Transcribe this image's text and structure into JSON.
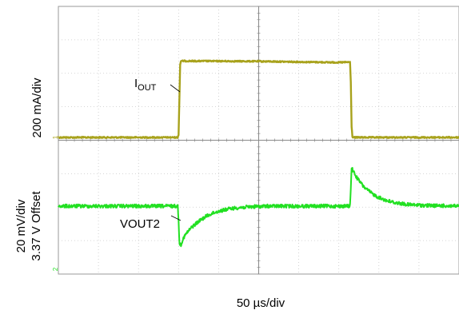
{
  "chart_data": {
    "type": "line",
    "title": "",
    "xlabel": "50 µs/div",
    "x_unit": "µs",
    "x_per_div": 50,
    "x_divisions": 10,
    "xlim": [
      0,
      500
    ],
    "grid": true,
    "legend": "none",
    "series": [
      {
        "name": "IOUT",
        "label_main": "I",
        "label_sub": "OUT",
        "channel_marker": "1",
        "ylabel": "200 mA/div",
        "color": "#a8a21c",
        "points": [
          [
            0,
            0
          ],
          [
            149,
            0
          ],
          [
            150,
            0.08
          ],
          [
            151,
            1.0
          ],
          [
            152,
            1.98
          ],
          [
            153,
            2.08
          ],
          [
            250,
            2.07
          ],
          [
            350,
            2.04
          ],
          [
            364,
            2.05
          ],
          [
            365,
            1.5
          ],
          [
            366,
            0.3
          ],
          [
            367,
            0.02
          ],
          [
            368,
            0
          ],
          [
            500,
            0
          ]
        ]
      },
      {
        "name": "VOUT2",
        "channel_marker": "2",
        "ylabel_lines": [
          "20 mV/div",
          "3.37 V Offset"
        ],
        "color": "#22e022",
        "points": [
          [
            0,
            0
          ],
          [
            149,
            0
          ],
          [
            150,
            -0.4
          ],
          [
            151,
            -1.15
          ],
          [
            153,
            -1.2
          ],
          [
            156,
            -1.0
          ],
          [
            160,
            -0.85
          ],
          [
            165,
            -0.7
          ],
          [
            170,
            -0.58
          ],
          [
            175,
            -0.48
          ],
          [
            180,
            -0.39
          ],
          [
            185,
            -0.31
          ],
          [
            190,
            -0.25
          ],
          [
            195,
            -0.2
          ],
          [
            200,
            -0.16
          ],
          [
            210,
            -0.1
          ],
          [
            220,
            -0.06
          ],
          [
            240,
            -0.02
          ],
          [
            260,
            0
          ],
          [
            364,
            0
          ],
          [
            365,
            0.6
          ],
          [
            366,
            1.2
          ],
          [
            368,
            1.1
          ],
          [
            371,
            0.95
          ],
          [
            375,
            0.8
          ],
          [
            380,
            0.64
          ],
          [
            385,
            0.52
          ],
          [
            390,
            0.42
          ],
          [
            395,
            0.34
          ],
          [
            400,
            0.27
          ],
          [
            410,
            0.17
          ],
          [
            420,
            0.11
          ],
          [
            430,
            0.07
          ],
          [
            440,
            0.04
          ],
          [
            460,
            0.02
          ],
          [
            480,
            0.01
          ],
          [
            500,
            0
          ]
        ]
      }
    ]
  }
}
